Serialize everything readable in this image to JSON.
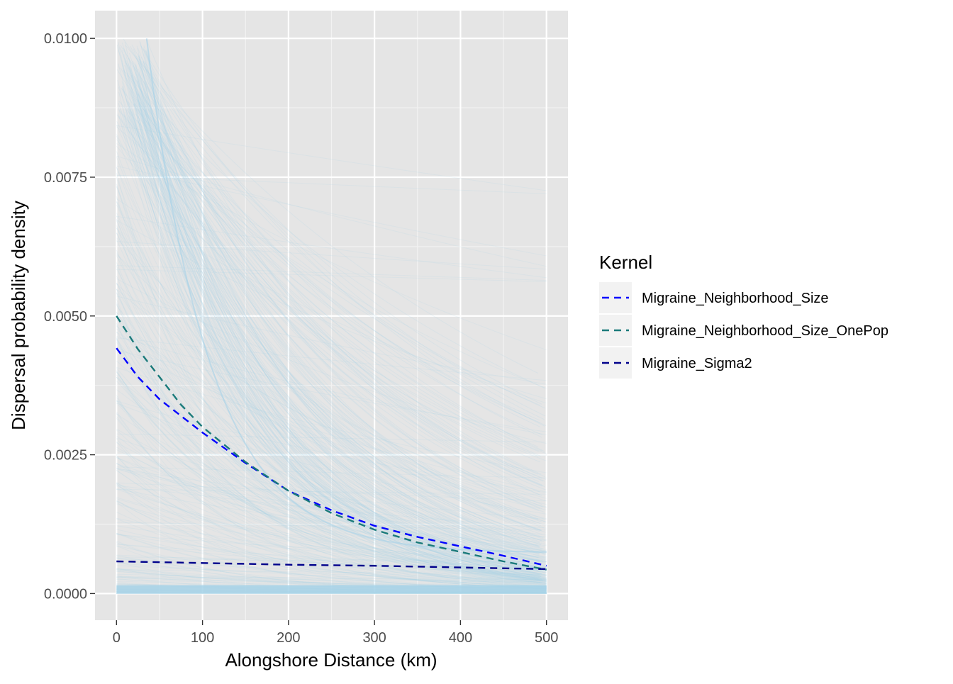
{
  "chart_data": {
    "type": "line",
    "xlabel": "Alongshore Distance (km)",
    "ylabel": "Dispersal probability density",
    "xlim": [
      -25,
      525
    ],
    "ylim": [
      -0.00048,
      0.0105
    ],
    "x_ticks": [
      0,
      100,
      200,
      300,
      400,
      500
    ],
    "x_tick_labels": [
      "0",
      "100",
      "200",
      "300",
      "400",
      "500"
    ],
    "y_ticks": [
      0,
      0.0025,
      0.005,
      0.0075,
      0.01
    ],
    "y_tick_labels": [
      "0.0000",
      "0.0025",
      "0.0050",
      "0.0075",
      "0.0100"
    ],
    "grid": true,
    "background": "#e5e5e5",
    "legend": {
      "title": "Kernel",
      "position": "right"
    },
    "posterior_band": {
      "color": "#a6d2e8",
      "x_range": [
        0,
        500
      ],
      "description_values": {
        "max_at_0": 0.01,
        "envelope_at_100": 0.0037,
        "envelope_at_200": 0.0019,
        "envelope_at_500": 0.00073
      }
    },
    "series": [
      {
        "name": "Migraine_Neighborhood_Size",
        "color": "#0000ff",
        "dash": "dashed",
        "x": [
          0,
          25,
          50,
          75,
          100,
          150,
          200,
          250,
          300,
          350,
          400,
          450,
          500
        ],
        "y": [
          0.00442,
          0.0039,
          0.0035,
          0.0032,
          0.0029,
          0.00235,
          0.00185,
          0.0015,
          0.00122,
          0.00102,
          0.00085,
          0.00068,
          0.0005
        ]
      },
      {
        "name": "Migraine_Neighborhood_Size_OnePop",
        "color": "#1a7a7a",
        "dash": "dashed",
        "x": [
          0,
          25,
          50,
          75,
          100,
          150,
          200,
          250,
          300,
          350,
          400,
          450,
          500
        ],
        "y": [
          0.005,
          0.0044,
          0.0039,
          0.0034,
          0.003,
          0.00237,
          0.00185,
          0.00145,
          0.00115,
          0.00092,
          0.00075,
          0.00058,
          0.00043
        ]
      },
      {
        "name": "Migraine_Sigma2",
        "color": "#00008b",
        "dash": "dashed",
        "x": [
          0,
          100,
          200,
          300,
          400,
          500
        ],
        "y": [
          0.00058,
          0.00055,
          0.00052,
          0.0005,
          0.00047,
          0.00044
        ]
      }
    ]
  }
}
